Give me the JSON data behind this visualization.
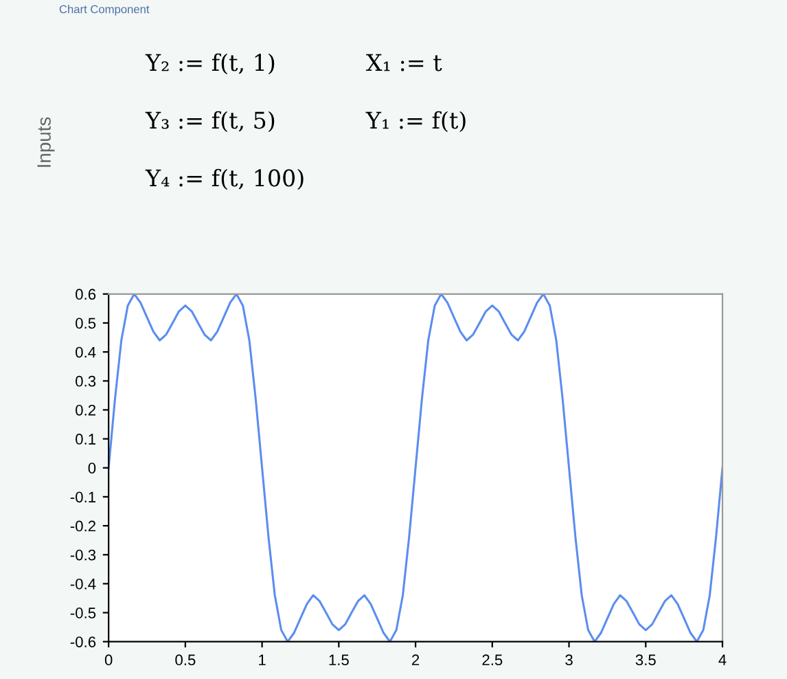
{
  "chart_data": {
    "type": "line",
    "x": [
      0,
      0.042,
      0.083,
      0.125,
      0.167,
      0.208,
      0.25,
      0.292,
      0.333,
      0.375,
      0.417,
      0.458,
      0.5,
      0.542,
      0.583,
      0.625,
      0.667,
      0.708,
      0.75,
      0.792,
      0.833,
      0.875,
      0.917,
      0.958,
      1,
      1.042,
      1.083,
      1.125,
      1.167,
      1.208,
      1.25,
      1.292,
      1.333,
      1.375,
      1.417,
      1.458,
      1.5,
      1.542,
      1.583,
      1.625,
      1.667,
      1.708,
      1.75,
      1.792,
      1.833,
      1.875,
      1.917,
      1.958,
      2,
      2.042,
      2.083,
      2.125,
      2.167,
      2.208,
      2.25,
      2.292,
      2.333,
      2.375,
      2.417,
      2.458,
      2.5,
      2.542,
      2.583,
      2.625,
      2.667,
      2.708,
      2.75,
      2.792,
      2.833,
      2.875,
      2.917,
      2.958,
      3,
      3.042,
      3.083,
      3.125,
      3.167,
      3.208,
      3.25,
      3.292,
      3.333,
      3.375,
      3.417,
      3.458,
      3.5,
      3.542,
      3.583,
      3.625,
      3.667,
      3.708,
      3.75,
      3.792,
      3.833,
      3.875,
      3.917,
      3.958,
      4
    ],
    "series": [
      {
        "color": "#5b8def",
        "values": [
          0,
          0.24,
          0.44,
          0.56,
          0.6,
          0.57,
          0.52,
          0.47,
          0.44,
          0.46,
          0.5,
          0.54,
          0.56,
          0.54,
          0.5,
          0.46,
          0.44,
          0.47,
          0.52,
          0.57,
          0.6,
          0.56,
          0.44,
          0.24,
          0,
          -0.24,
          -0.44,
          -0.56,
          -0.6,
          -0.57,
          -0.52,
          -0.47,
          -0.44,
          -0.46,
          -0.5,
          -0.54,
          -0.56,
          -0.54,
          -0.5,
          -0.46,
          -0.44,
          -0.47,
          -0.52,
          -0.57,
          -0.6,
          -0.56,
          -0.44,
          -0.24,
          0,
          0.24,
          0.44,
          0.56,
          0.6,
          0.57,
          0.52,
          0.47,
          0.44,
          0.46,
          0.5,
          0.54,
          0.56,
          0.54,
          0.5,
          0.46,
          0.44,
          0.47,
          0.52,
          0.57,
          0.6,
          0.56,
          0.44,
          0.24,
          0,
          -0.24,
          -0.44,
          -0.56,
          -0.6,
          -0.57,
          -0.52,
          -0.47,
          -0.44,
          -0.46,
          -0.5,
          -0.54,
          -0.56,
          -0.54,
          -0.5,
          -0.46,
          -0.44,
          -0.47,
          -0.52,
          -0.57,
          -0.6,
          -0.56,
          -0.44,
          -0.24,
          0
        ]
      }
    ],
    "xlim": [
      0,
      4
    ],
    "xticks": [
      0,
      0.5,
      1,
      1.5,
      2,
      2.5,
      3,
      3.5,
      4
    ],
    "ylim": [
      -0.6,
      0.6
    ],
    "yticks": [
      -0.6,
      -0.5,
      -0.4,
      -0.3,
      -0.2,
      -0.1,
      0,
      0.1,
      0.2,
      0.3,
      0.4,
      0.5,
      0.6
    ],
    "grid": false,
    "legend": false,
    "marker": "none",
    "line_style": "solid",
    "annotations": [
      "Chart Component",
      "Inputs",
      "Y₂ := f(t, 1)",
      "Y₃ := f(t, 5)",
      "Y₄ := f(t, 100)",
      "X₁ := t",
      "Y₁ := f(t)"
    ]
  }
}
